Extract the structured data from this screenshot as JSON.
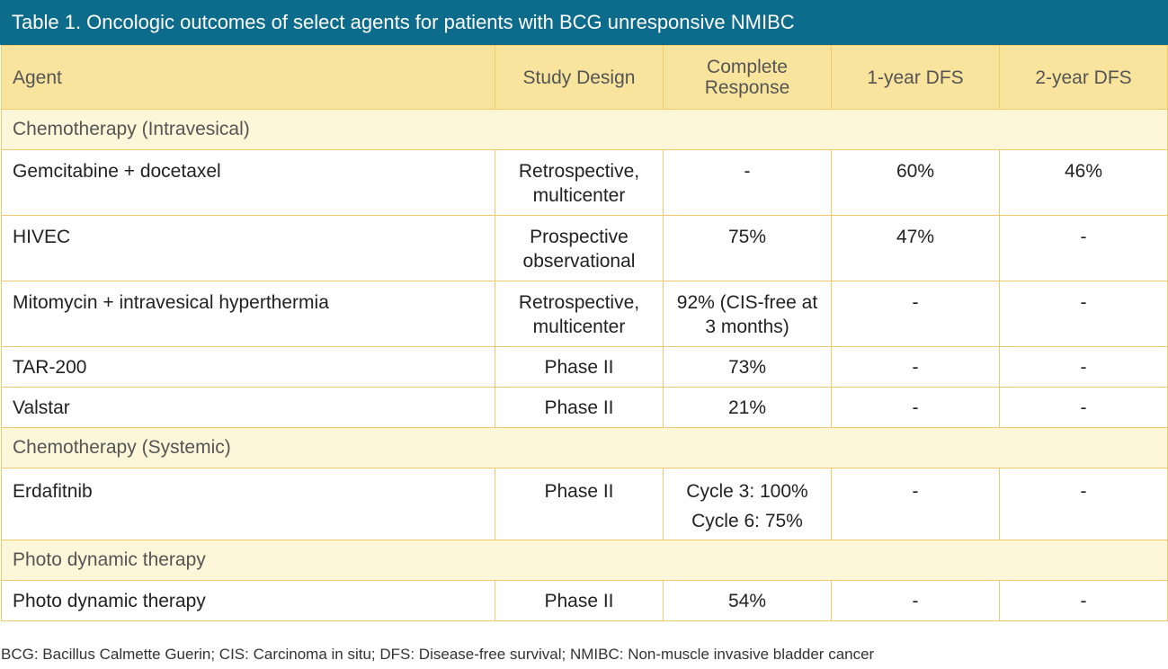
{
  "title": "Table 1. Oncologic outcomes of select agents for patients with BCG unresponsive NMIBC",
  "columns": {
    "agent": "Agent",
    "study_design": "Study Design",
    "complete_response": [
      "Complete",
      "Response"
    ],
    "dfs_1yr": "1-year DFS",
    "dfs_2yr": "2-year DFS"
  },
  "sections": [
    {
      "label": "Chemotherapy (Intravesical)",
      "rows": [
        {
          "agent": "Gemcitabine + docetaxel",
          "design": [
            "Retrospective,",
            "multicenter"
          ],
          "response": [
            "-"
          ],
          "dfs1": "60%",
          "dfs2": "46%"
        },
        {
          "agent": "HIVEC",
          "design": [
            "Prospective",
            "observational"
          ],
          "response": [
            "75%"
          ],
          "dfs1": "47%",
          "dfs2": "-"
        },
        {
          "agent": "Mitomycin + intravesical hyperthermia",
          "design": [
            "Retrospective,",
            "multicenter"
          ],
          "response": [
            "92% (CIS-free at",
            "3 months)"
          ],
          "dfs1": "-",
          "dfs2": "-"
        },
        {
          "agent": "TAR-200",
          "design": [
            "Phase II"
          ],
          "response": [
            "73%"
          ],
          "dfs1": "-",
          "dfs2": "-"
        },
        {
          "agent": "Valstar",
          "design": [
            "Phase II"
          ],
          "response": [
            "21%"
          ],
          "dfs1": "-",
          "dfs2": "-"
        }
      ]
    },
    {
      "label": "Chemotherapy (Systemic)",
      "rows": [
        {
          "agent": "Erdafitnib",
          "design": [
            "Phase II"
          ],
          "response": [
            "Cycle 3: 100%",
            "Cycle 6: 75%"
          ],
          "dfs1": "-",
          "dfs2": "-"
        }
      ]
    },
    {
      "label": "Photo dynamic therapy",
      "rows": [
        {
          "agent": "Photo dynamic therapy",
          "design": [
            "Phase II"
          ],
          "response": [
            "54%"
          ],
          "dfs1": "-",
          "dfs2": "-"
        }
      ]
    }
  ],
  "footnote": "BCG: Bacillus Calmette Guerin; CIS: Carcinoma in situ; DFS: Disease-free survival; NMIBC: Non-muscle invasive bladder cancer"
}
